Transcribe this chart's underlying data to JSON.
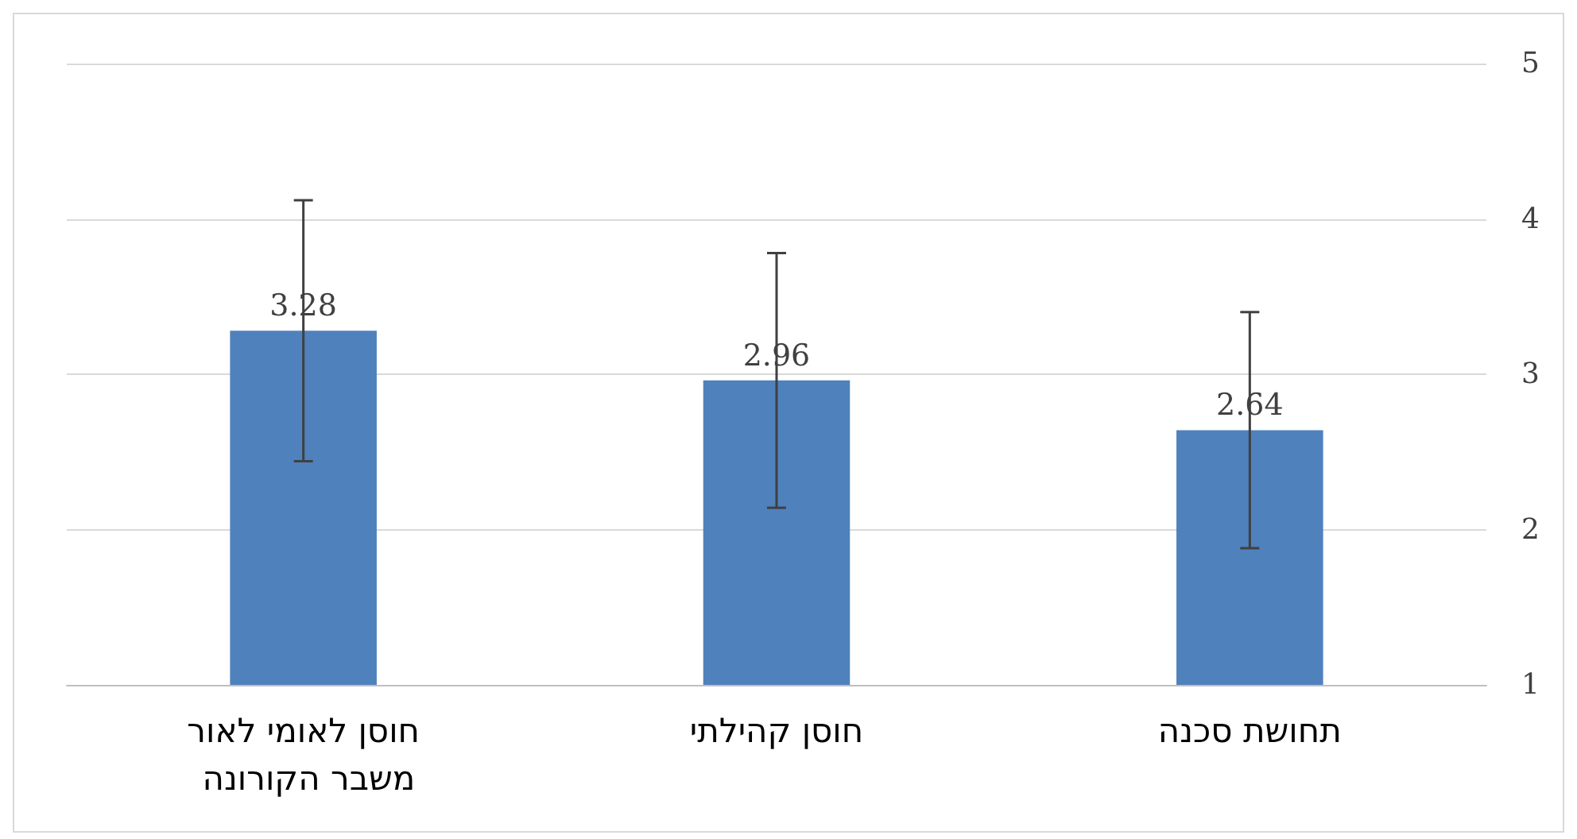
{
  "chart_data": {
    "type": "bar",
    "categories": [
      "חוסן לאומי לאור משבר הקורונה",
      "חוסן קהילתי",
      "תחושת סכנה"
    ],
    "values": [
      3.28,
      2.96,
      2.64
    ],
    "color": "#4f81bd",
    "errors": [
      0.84,
      0.82,
      0.76
    ],
    "ylim": [
      1,
      5
    ],
    "yticks": [
      1,
      2,
      3,
      4,
      5
    ],
    "grid": "y",
    "data_labels": true
  }
}
